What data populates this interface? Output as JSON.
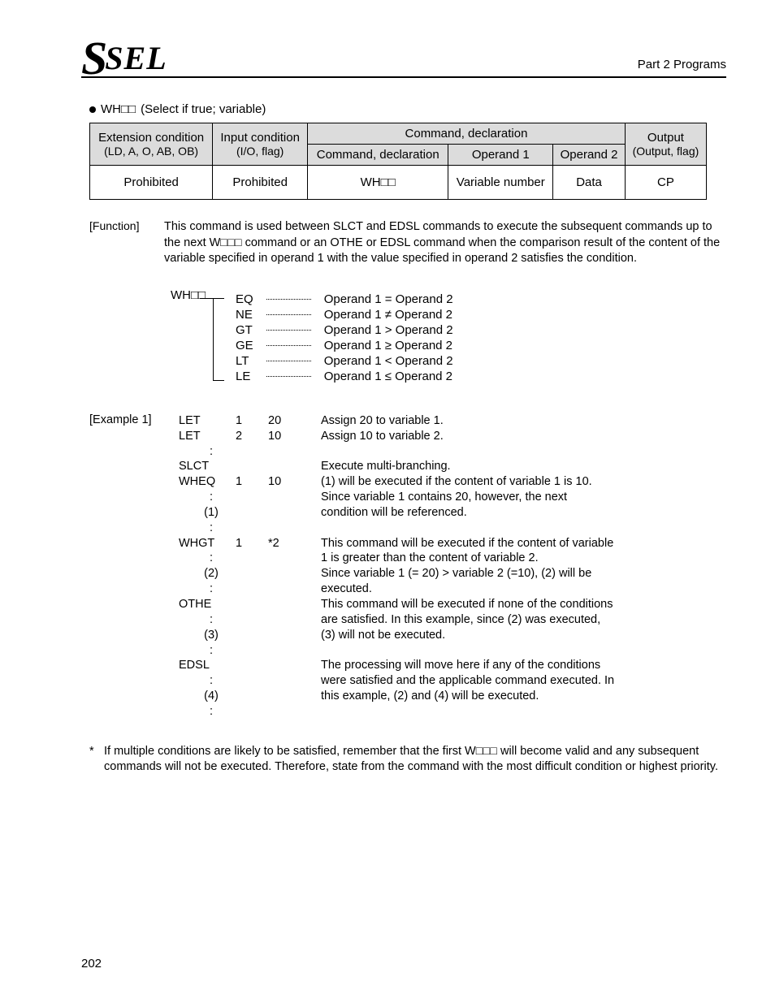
{
  "header": {
    "logo_big": "S",
    "logo_rest": "SEL",
    "part_label": "Part 2 Programs"
  },
  "title": {
    "prefix": "WH□□",
    "suffix": "(Select if true; variable)"
  },
  "table": {
    "h_cmd_decl": "Command, declaration",
    "h_ext": "Extension condition",
    "h_ext_sub": "(LD, A, O, AB, OB)",
    "h_in": "Input condition",
    "h_in_sub": "(I/O, flag)",
    "h_cmd": "Command, declaration",
    "h_op1": "Operand 1",
    "h_op2": "Operand 2",
    "h_out": "Output",
    "h_out_sub": "(Output, flag)",
    "r_ext": "Prohibited",
    "r_in": "Prohibited",
    "r_cmd": "WH□□",
    "r_op1": "Variable number",
    "r_op2": "Data",
    "r_out": "CP"
  },
  "function": {
    "label": "[Function]",
    "text": "This command is used between SLCT and EDSL commands to execute the subsequent commands up to the next W□□□ command or an OTHE or EDSL command when the comparison result of the content of the variable specified in operand 1 with the value specified in operand 2 satisfies the condition."
  },
  "cond": {
    "wh": "WH□□",
    "rows": [
      {
        "op": "EQ",
        "desc": "Operand 1 = Operand 2"
      },
      {
        "op": "NE",
        "desc": "Operand 1 ≠ Operand 2"
      },
      {
        "op": "GT",
        "desc": "Operand 1 > Operand 2"
      },
      {
        "op": "GE",
        "desc": "Operand 1 ≥ Operand 2"
      },
      {
        "op": "LT",
        "desc": "Operand 1 < Operand 2"
      },
      {
        "op": "LE",
        "desc": "Operand 1 ≤ Operand 2"
      }
    ]
  },
  "example": {
    "label": "[Example 1]",
    "lines": [
      {
        "c": "LET",
        "o1": "1",
        "o2": "20",
        "d": "Assign 20 to variable 1."
      },
      {
        "c": "LET",
        "o1": "2",
        "o2": "10",
        "d": "Assign 10 to variable 2."
      },
      {
        "c": ":",
        "colon": true
      },
      {
        "c": "SLCT",
        "o1": "",
        "o2": "",
        "d": "Execute multi-branching."
      },
      {
        "c": "WHEQ",
        "o1": "1",
        "o2": "10",
        "d": "(1) will be executed if the content of variable 1 is 10."
      },
      {
        "c": ":",
        "colon": true,
        "d": "Since variable 1 contains 20, however, the next"
      },
      {
        "c": "(1)",
        "paren": true,
        "d": "condition will be referenced."
      },
      {
        "c": ":",
        "colon": true
      },
      {
        "c": "WHGT",
        "o1": "1",
        "o2": "*2",
        "d": "This command will be executed if the content of variable"
      },
      {
        "c": ":",
        "colon": true,
        "d": "1 is greater than the content of variable 2."
      },
      {
        "c": "(2)",
        "paren": true,
        "d": "Since variable 1 (= 20) > variable 2 (=10), (2) will be"
      },
      {
        "c": ":",
        "colon": true,
        "d": "executed."
      },
      {
        "c": "OTHE",
        "o1": "",
        "o2": "",
        "d": "This command will be executed if none of the conditions"
      },
      {
        "c": ":",
        "colon": true,
        "d": "are satisfied. In this example, since (2) was executed,"
      },
      {
        "c": "(3)",
        "paren": true,
        "d": "(3) will not be executed."
      },
      {
        "c": ":",
        "colon": true
      },
      {
        "c": "EDSL",
        "o1": "",
        "o2": "",
        "d": "The processing will move here if any of the conditions"
      },
      {
        "c": ":",
        "colon": true,
        "d": "were satisfied and the applicable command executed. In"
      },
      {
        "c": "(4)",
        "paren": true,
        "d": "this example, (2) and (4) will be executed."
      },
      {
        "c": ":",
        "colon": true
      }
    ]
  },
  "footnote": {
    "star": "*",
    "text": "If multiple conditions are likely to be satisfied, remember that the first W□□□ will become valid and any subsequent commands will not be executed. Therefore, state from the command with the most difficult condition or highest priority."
  },
  "page_number": "202"
}
